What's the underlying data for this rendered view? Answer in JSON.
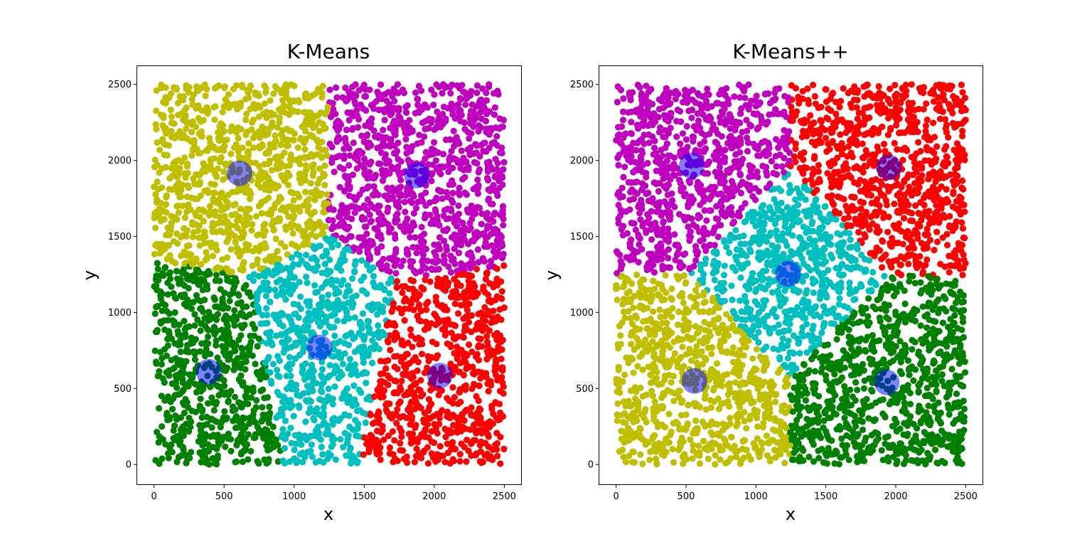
{
  "chart_data": [
    {
      "type": "scatter",
      "title": "K-Means",
      "xlabel": "x",
      "ylabel": "y",
      "xlim": [
        -120,
        2620
      ],
      "ylim": [
        -130,
        2620
      ],
      "xticks": [
        0,
        500,
        1000,
        1500,
        2000,
        2500
      ],
      "yticks": [
        0,
        500,
        1000,
        1500,
        2000,
        2500
      ],
      "grid": false,
      "point_count": 4000,
      "point_domain": [
        0,
        2500
      ],
      "clusters": [
        {
          "color": "#bfbf00",
          "centroid": [
            610,
            1915
          ]
        },
        {
          "color": "#bf00bf",
          "centroid": [
            1875,
            1900
          ]
        },
        {
          "color": "#008000",
          "centroid": [
            390,
            610
          ]
        },
        {
          "color": "#00bfbf",
          "centroid": [
            1180,
            770
          ]
        },
        {
          "color": "#ff0000",
          "centroid": [
            2040,
            585
          ]
        }
      ],
      "centroid_color": "#0000ff",
      "centroid_alpha": 0.5
    },
    {
      "type": "scatter",
      "title": "K-Means++",
      "xlabel": "x",
      "ylabel": "y",
      "xlim": [
        -120,
        2620
      ],
      "ylim": [
        -130,
        2620
      ],
      "xticks": [
        0,
        500,
        1000,
        1500,
        2000,
        2500
      ],
      "yticks": [
        0,
        500,
        1000,
        1500,
        2000,
        2500
      ],
      "grid": false,
      "point_count": 4000,
      "point_domain": [
        0,
        2500
      ],
      "clusters": [
        {
          "color": "#bf00bf",
          "centroid": [
            540,
            1965
          ]
        },
        {
          "color": "#ff0000",
          "centroid": [
            1950,
            1955
          ]
        },
        {
          "color": "#00bfbf",
          "centroid": [
            1230,
            1255
          ]
        },
        {
          "color": "#bfbf00",
          "centroid": [
            560,
            550
          ]
        },
        {
          "color": "#008000",
          "centroid": [
            1935,
            540
          ]
        }
      ],
      "centroid_color": "#0000ff",
      "centroid_alpha": 0.5
    }
  ]
}
